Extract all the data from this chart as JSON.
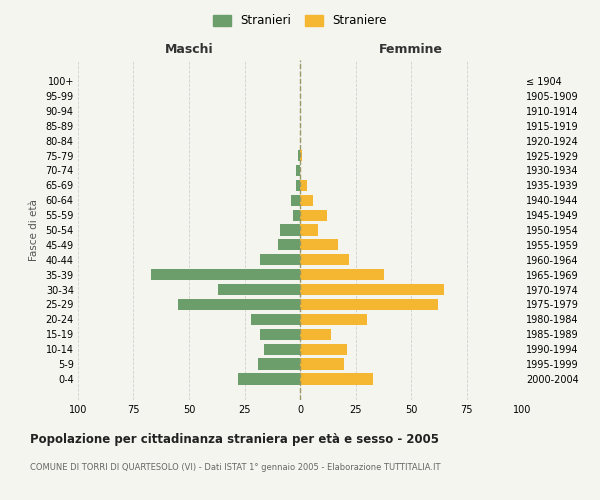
{
  "age_groups": [
    "0-4",
    "5-9",
    "10-14",
    "15-19",
    "20-24",
    "25-29",
    "30-34",
    "35-39",
    "40-44",
    "45-49",
    "50-54",
    "55-59",
    "60-64",
    "65-69",
    "70-74",
    "75-79",
    "80-84",
    "85-89",
    "90-94",
    "95-99",
    "100+"
  ],
  "birth_years": [
    "2000-2004",
    "1995-1999",
    "1990-1994",
    "1985-1989",
    "1980-1984",
    "1975-1979",
    "1970-1974",
    "1965-1969",
    "1960-1964",
    "1955-1959",
    "1950-1954",
    "1945-1949",
    "1940-1944",
    "1935-1939",
    "1930-1934",
    "1925-1929",
    "1920-1924",
    "1915-1919",
    "1910-1914",
    "1905-1909",
    "≤ 1904"
  ],
  "maschi": [
    28,
    19,
    16,
    18,
    22,
    55,
    37,
    67,
    18,
    10,
    9,
    3,
    4,
    2,
    2,
    1,
    0,
    0,
    0,
    0,
    0
  ],
  "femmine": [
    33,
    20,
    21,
    14,
    30,
    62,
    65,
    38,
    22,
    17,
    8,
    12,
    6,
    3,
    0,
    1,
    0,
    0,
    0,
    0,
    0
  ],
  "color_maschi": "#6b9e6b",
  "color_femmine": "#f5b731",
  "background_color": "#f5f5f0",
  "grid_color": "#cccccc",
  "title": "Popolazione per cittadinanza straniera per età e sesso - 2005",
  "subtitle": "COMUNE DI TORRI DI QUARTESOLO (VI) - Dati ISTAT 1° gennaio 2005 - Elaborazione TUTTITALIA.IT",
  "ylabel_left": "Fasce di età",
  "label_maschi": "Maschi",
  "label_femmine": "Femmine",
  "legend_maschi": "Stranieri",
  "legend_femmine": "Straniere",
  "xlim": 100,
  "dashed_line_color": "#999966"
}
